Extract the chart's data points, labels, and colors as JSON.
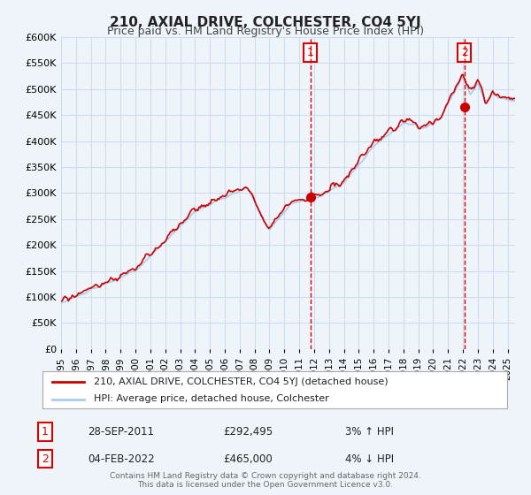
{
  "title": "210, AXIAL DRIVE, COLCHESTER, CO4 5YJ",
  "subtitle": "Price paid vs. HM Land Registry's House Price Index (HPI)",
  "legend_label1": "210, AXIAL DRIVE, COLCHESTER, CO4 5YJ (detached house)",
  "legend_label2": "HPI: Average price, detached house, Colchester",
  "annotation1_date": "28-SEP-2011",
  "annotation1_price": "£292,495",
  "annotation1_hpi": "3% ↑ HPI",
  "annotation2_date": "04-FEB-2022",
  "annotation2_price": "£465,000",
  "annotation2_hpi": "4% ↓ HPI",
  "footer": "Contains HM Land Registry data © Crown copyright and database right 2024.\nThis data is licensed under the Open Government Licence v3.0.",
  "red_line_color": "#cc0000",
  "blue_line_color": "#aaccee",
  "annotation_vline_color": "#dd0000",
  "dot_color": "#cc0000",
  "grid_color": "#ccddee",
  "bg_color": "#eef4fa",
  "ylim": [
    0,
    600000
  ],
  "yticks": [
    0,
    50000,
    100000,
    150000,
    200000,
    250000,
    300000,
    350000,
    400000,
    450000,
    500000,
    550000,
    600000
  ],
  "xmin": 1995.0,
  "xmax": 2025.5,
  "marker1_x": 2011.74,
  "marker1_y": 292495,
  "marker2_x": 2022.09,
  "marker2_y": 465000
}
